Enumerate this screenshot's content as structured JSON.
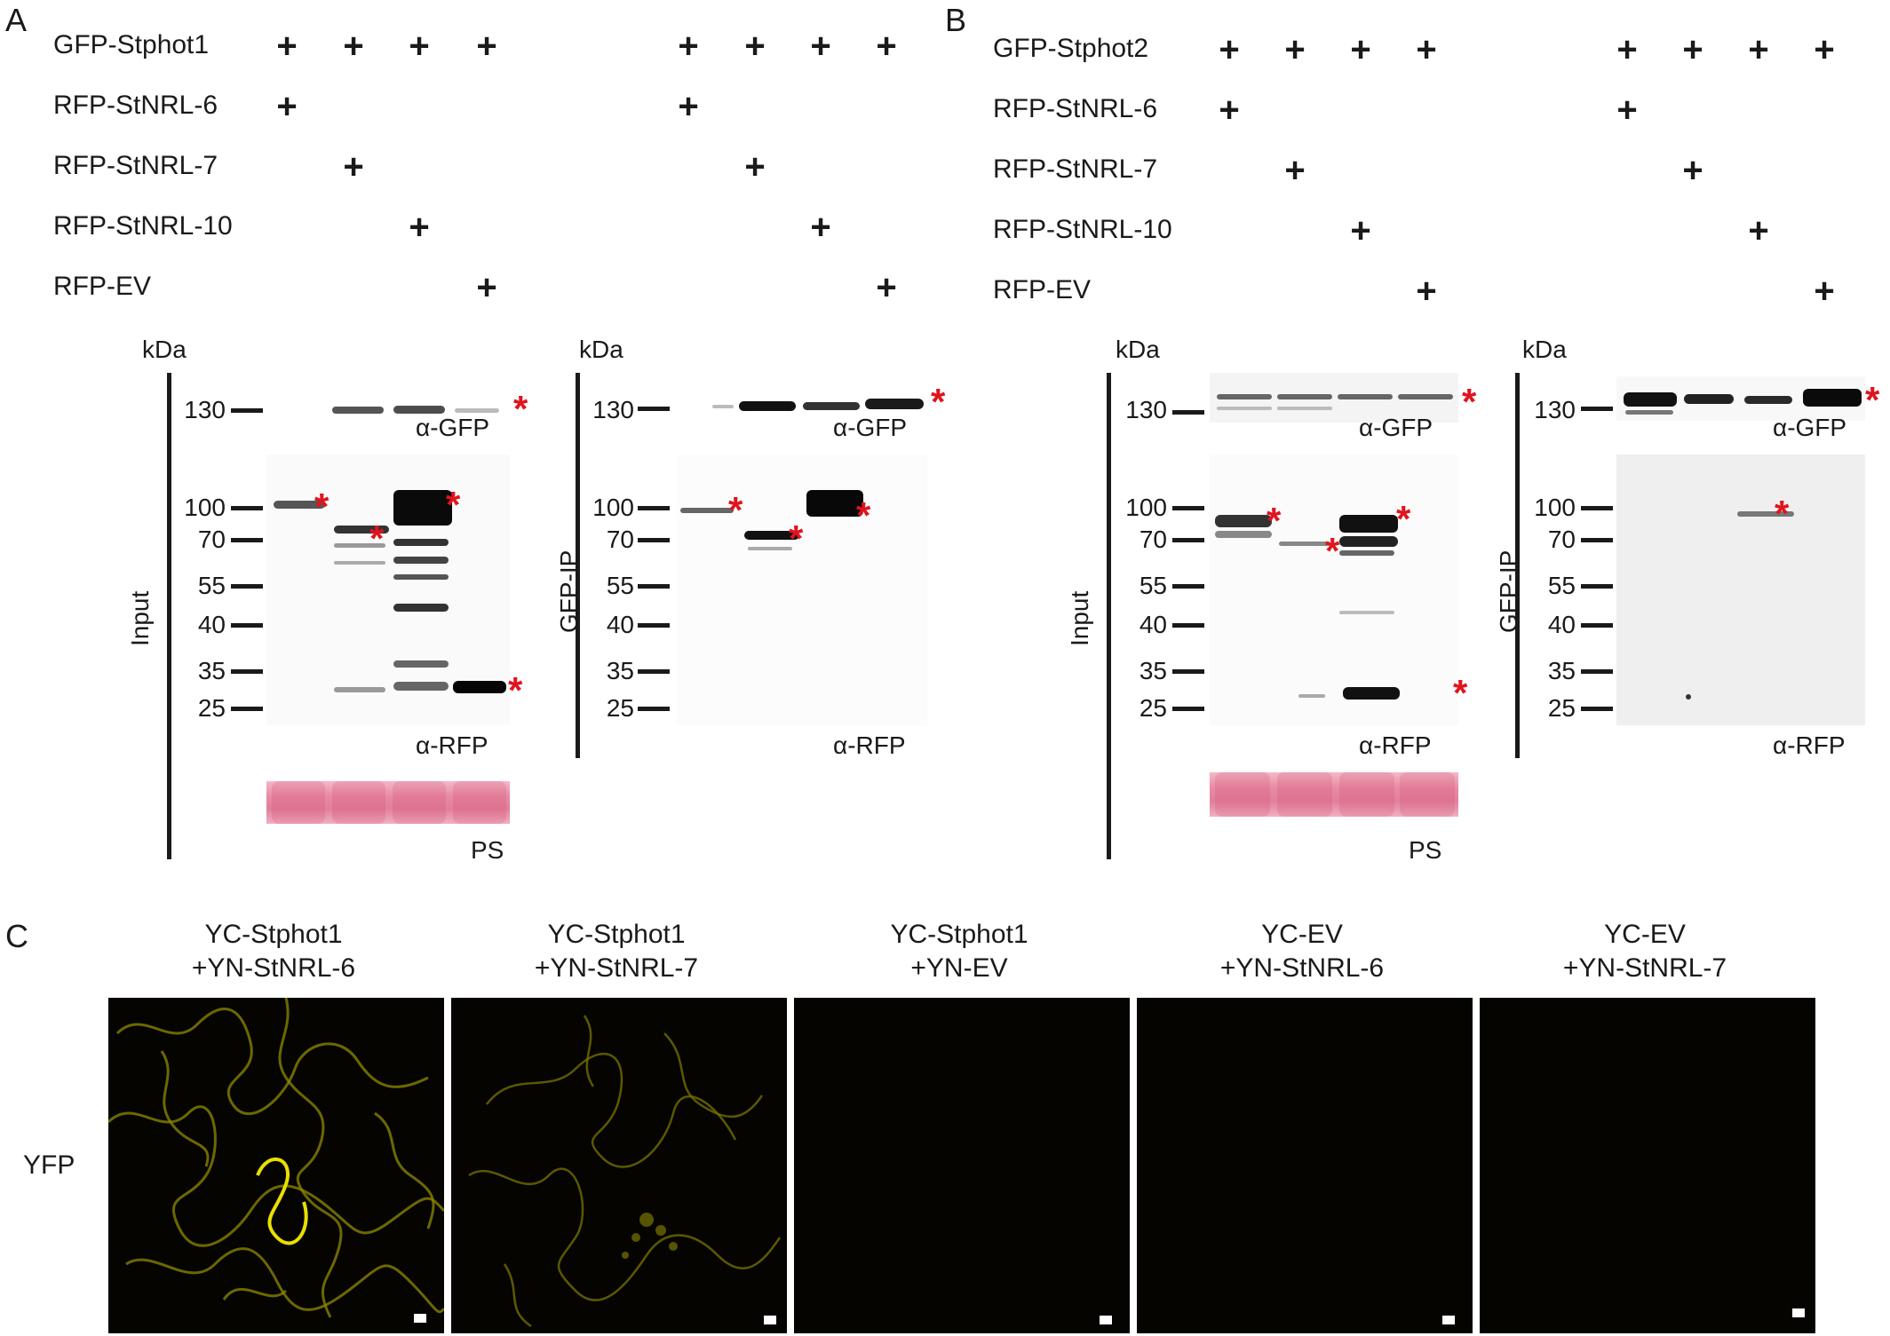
{
  "panels": {
    "A": {
      "letter": "A",
      "rows": [
        {
          "label": "GFP-Stphot1",
          "plus": [
            true,
            true,
            true,
            true,
            true,
            true,
            true,
            true
          ]
        },
        {
          "label": "RFP-StNRL-6",
          "plus": [
            true,
            false,
            false,
            false,
            true,
            false,
            false,
            false
          ]
        },
        {
          "label": "RFP-StNRL-7",
          "plus": [
            false,
            true,
            false,
            false,
            false,
            true,
            false,
            false
          ]
        },
        {
          "label": "RFP-StNRL-10",
          "plus": [
            false,
            false,
            true,
            false,
            false,
            false,
            true,
            false
          ]
        },
        {
          "label": "RFP-EV",
          "plus": [
            false,
            false,
            false,
            true,
            false,
            false,
            false,
            true
          ]
        }
      ],
      "plus_symbol": "+",
      "input": {
        "side_label": "Input",
        "kda": "kDa",
        "gfp_marker": "130",
        "gfp_antibody": "α-GFP",
        "rfp_markers": [
          "100",
          "70",
          "55",
          "40",
          "35",
          "25"
        ],
        "rfp_antibody": "α-RFP",
        "stain_label": "PS"
      },
      "ip": {
        "side_label": "GFP-IP",
        "kda": "kDa",
        "gfp_marker": "130",
        "gfp_antibody": "α-GFP",
        "rfp_markers": [
          "100",
          "70",
          "55",
          "40",
          "35",
          "25"
        ],
        "rfp_antibody": "α-RFP"
      }
    },
    "B": {
      "letter": "B",
      "rows": [
        {
          "label": "GFP-Stphot2",
          "plus": [
            true,
            true,
            true,
            true,
            true,
            true,
            true,
            true
          ]
        },
        {
          "label": "RFP-StNRL-6",
          "plus": [
            true,
            false,
            false,
            false,
            true,
            false,
            false,
            false
          ]
        },
        {
          "label": "RFP-StNRL-7",
          "plus": [
            false,
            true,
            false,
            false,
            false,
            true,
            false,
            false
          ]
        },
        {
          "label": "RFP-StNRL-10",
          "plus": [
            false,
            false,
            true,
            false,
            false,
            false,
            true,
            false
          ]
        },
        {
          "label": "RFP-EV",
          "plus": [
            false,
            false,
            false,
            true,
            false,
            false,
            false,
            true
          ]
        }
      ],
      "plus_symbol": "+",
      "input": {
        "side_label": "Input",
        "kda": "kDa",
        "gfp_marker": "130",
        "gfp_antibody": "α-GFP",
        "rfp_markers": [
          "100",
          "70",
          "55",
          "40",
          "35",
          "25"
        ],
        "rfp_antibody": "α-RFP",
        "stain_label": "PS"
      },
      "ip": {
        "side_label": "GFP-IP",
        "kda": "kDa",
        "gfp_marker": "130",
        "gfp_antibody": "α-GFP",
        "rfp_markers": [
          "100",
          "70",
          "55",
          "40",
          "35",
          "25"
        ],
        "rfp_antibody": "α-RFP"
      }
    },
    "C": {
      "letter": "C",
      "row_label": "YFP",
      "conditions": [
        {
          "line1": "YC-Stphot1",
          "line2": "+YN-StNRL-6",
          "signal": "strong"
        },
        {
          "line1": "YC-Stphot1",
          "line2": "+YN-StNRL-7",
          "signal": "moderate"
        },
        {
          "line1": "YC-Stphot1",
          "line2": "+YN-EV",
          "signal": "none"
        },
        {
          "line1": "YC-EV",
          "line2": "+YN-StNRL-6",
          "signal": "none"
        },
        {
          "line1": "YC-EV",
          "line2": "+YN-StNRL-7",
          "signal": "none"
        }
      ]
    }
  },
  "colors": {
    "asterisk": "#e0141e",
    "ponceau": "#e27f9a",
    "yfp": "#d8d000",
    "background_micro": "#050400"
  },
  "marker_symbol": "*"
}
